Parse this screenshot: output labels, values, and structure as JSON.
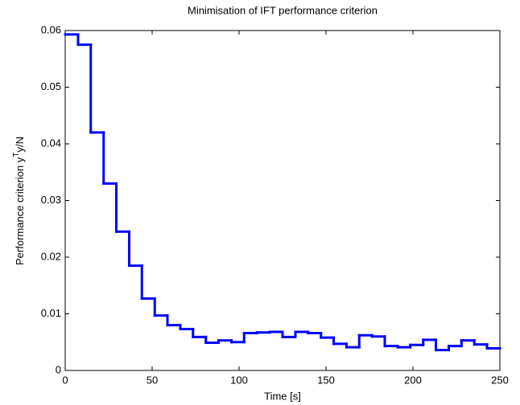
{
  "chart_data": {
    "type": "stairs",
    "title": "Minimisation of IFT performance criterion",
    "xlabel": "Time [s]",
    "ylabel": [
      "Performance criterion y",
      "T",
      "y/N"
    ],
    "color": "#0000ff",
    "x": [
      0,
      7.4,
      14.7,
      22.1,
      29.4,
      36.8,
      44.1,
      51.5,
      58.8,
      66.2,
      73.5,
      80.9,
      88.2,
      95.6,
      102.9,
      110.3,
      117.6,
      125,
      132.4,
      139.7,
      147.1,
      154.4,
      161.8,
      169.1,
      176.5,
      183.8,
      191.2,
      198.5,
      205.9,
      213.2,
      220.6,
      227.9,
      235.3,
      242.6,
      250
    ],
    "values": [
      0.0593,
      0.0575,
      0.042,
      0.033,
      0.0245,
      0.0185,
      0.0127,
      0.0097,
      0.008,
      0.0073,
      0.0059,
      0.0049,
      0.0053,
      0.005,
      0.0066,
      0.0067,
      0.0068,
      0.0059,
      0.0068,
      0.0066,
      0.0058,
      0.0047,
      0.0041,
      0.0062,
      0.006,
      0.0043,
      0.0041,
      0.0045,
      0.0054,
      0.0036,
      0.0043,
      0.0053,
      0.0046,
      0.0039,
      0.0039
    ],
    "xlim": [
      0,
      250
    ],
    "xticks": [
      0,
      50,
      100,
      150,
      200,
      250
    ],
    "ylim": [
      0,
      0.06
    ],
    "yticks": [
      0,
      0.01,
      0.02,
      0.03,
      0.04,
      0.05,
      0.06
    ],
    "grid": false
  }
}
